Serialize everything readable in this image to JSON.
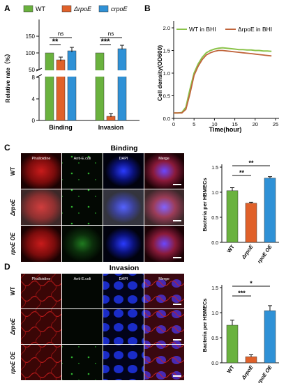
{
  "colors": {
    "wt": "#6ab23e",
    "rpoe": "#e0612a",
    "crpoe": "#2f91d6",
    "wt_line": "#8bc34a",
    "rpoe_line": "#c0643b"
  },
  "panels": {
    "a": "A",
    "b": "B",
    "c": "C",
    "d": "D"
  },
  "panel_a": {
    "legend": [
      "WT",
      "ΔrpoE",
      "crpoE"
    ],
    "ylabel": "Relative rate（%）",
    "yticks_top": [
      "50",
      "100",
      "150"
    ],
    "yticks_bottom": [
      "0",
      "4",
      "8"
    ],
    "groups": [
      "Binding",
      "Invasion"
    ],
    "sig": {
      "binding_ns": "ns",
      "binding_star": "**",
      "invasion_ns": "ns",
      "invasion_star": "***"
    }
  },
  "panel_b": {
    "legend": [
      "WT in BHI",
      "ΔrpoE in BHI"
    ],
    "ylabel": "Cell density(OD600)",
    "xlabel": "Time(hour)",
    "xticks": [
      "0",
      "5",
      "10",
      "15",
      "20",
      "25"
    ],
    "yticks": [
      "0.0",
      "0.5",
      "1.0",
      "1.5",
      "2.0"
    ]
  },
  "panel_c": {
    "title": "Binding",
    "cols": [
      "Phalloidine",
      "Anti-E.coli",
      "DAPI",
      "Merge"
    ],
    "rows": [
      "WT",
      "ΔrpoE",
      "rpoE OE"
    ],
    "bar_ylabel": "Bacteria per HBMECs",
    "yticks": [
      "0.0",
      "0.5",
      "1.0",
      "1.5"
    ],
    "xlabels": [
      "WT",
      "ΔrpoE",
      "rpoE OE"
    ],
    "sig": [
      "**",
      "**"
    ]
  },
  "panel_d": {
    "title": "Invasion",
    "cols": [
      "Phalloidine",
      "Anti-E.coli",
      "DAPI",
      "Merge"
    ],
    "rows": [
      "WT",
      "ΔrpoE",
      "rpoE OE"
    ],
    "bar_ylabel": "Bacteria per HBMECs",
    "yticks": [
      "0.0",
      "0.5",
      "1.0",
      "1.5"
    ],
    "xlabels": [
      "WT",
      "ΔrpoE",
      "rpoE OE"
    ],
    "sig": [
      "*",
      "***"
    ]
  },
  "chart_data": [
    {
      "type": "bar",
      "categories": [
        "Binding",
        "Invasion"
      ],
      "series": [
        {
          "name": "WT",
          "values": [
            100,
            100
          ]
        },
        {
          "name": "ΔrpoE",
          "values": [
            80,
            0.8
          ]
        },
        {
          "name": "crpoE",
          "values": [
            107,
            112
          ]
        }
      ],
      "ylabel": "Relative rate（%）",
      "broken_axis": [
        [
          0,
          8
        ],
        [
          50,
          150
        ]
      ]
    },
    {
      "type": "line",
      "x": [
        0,
        1,
        2,
        3,
        4,
        5,
        6,
        7,
        8,
        9,
        10,
        11,
        12,
        13,
        14,
        15,
        16,
        17,
        18,
        19,
        20,
        21,
        22,
        23,
        24
      ],
      "series": [
        {
          "name": "WT in BHI",
          "values": [
            0.12,
            0.12,
            0.13,
            0.25,
            0.65,
            1.0,
            1.2,
            1.35,
            1.45,
            1.5,
            1.53,
            1.55,
            1.56,
            1.55,
            1.54,
            1.53,
            1.52,
            1.52,
            1.51,
            1.51,
            1.5,
            1.5,
            1.49,
            1.49,
            1.48
          ]
        },
        {
          "name": "ΔrpoE in BHI",
          "values": [
            0.12,
            0.12,
            0.12,
            0.2,
            0.55,
            0.95,
            1.15,
            1.3,
            1.4,
            1.45,
            1.48,
            1.5,
            1.5,
            1.49,
            1.48,
            1.47,
            1.46,
            1.45,
            1.44,
            1.43,
            1.42,
            1.41,
            1.4,
            1.39,
            1.38
          ]
        }
      ],
      "xlabel": "Time(hour)",
      "ylabel": "Cell density(OD600)",
      "xlim": [
        0,
        25
      ],
      "ylim": [
        0,
        2.0
      ]
    },
    {
      "type": "bar",
      "categories": [
        "WT",
        "ΔrpoE",
        "rpoE OE"
      ],
      "values": [
        1.03,
        0.78,
        1.28
      ],
      "errors": [
        0.06,
        0.02,
        0.03
      ],
      "ylabel": "Bacteria per HBMECs",
      "ylim": [
        0,
        1.5
      ]
    },
    {
      "type": "bar",
      "categories": [
        "WT",
        "ΔrpoE",
        "rpoE OE"
      ],
      "values": [
        0.75,
        0.12,
        1.04
      ],
      "errors": [
        0.1,
        0.04,
        0.1
      ],
      "ylabel": "Bacteria per HBMECs",
      "ylim": [
        0,
        1.5
      ]
    }
  ]
}
